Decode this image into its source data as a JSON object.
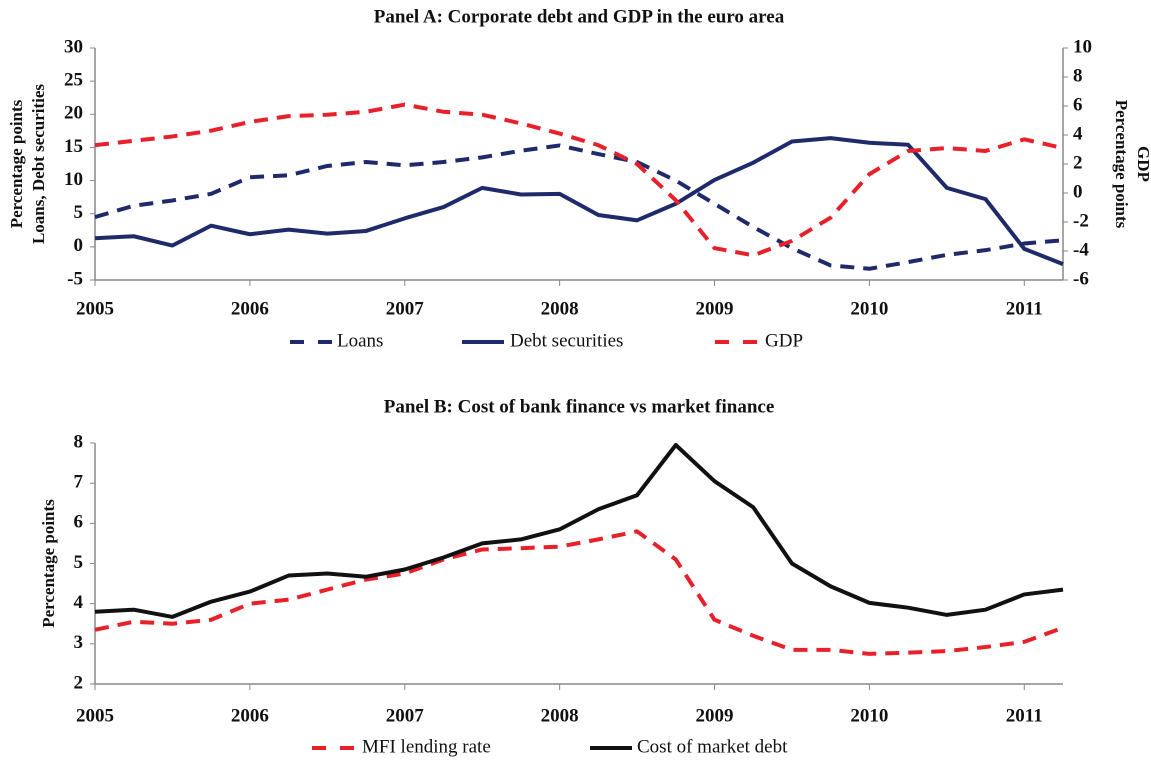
{
  "chart_data": [
    {
      "type": "line",
      "title": "Panel A: Corporate debt and GDP in the euro area",
      "ylabel": [
        "Percentage points",
        "Loans, Debt securities"
      ],
      "y2label": [
        "Percentage points",
        "GDP"
      ],
      "x": [
        2005,
        2005.25,
        2005.5,
        2005.75,
        2006,
        2006.25,
        2006.5,
        2006.75,
        2007,
        2007.25,
        2007.5,
        2007.75,
        2008,
        2008.25,
        2008.5,
        2008.75,
        2009,
        2009.25,
        2009.5,
        2009.75,
        2010,
        2010.25,
        2010.5,
        2010.75,
        2011,
        2011.25
      ],
      "xlim": [
        2005,
        2011.25
      ],
      "xticks": [
        2005,
        2006,
        2007,
        2008,
        2009,
        2010,
        2011
      ],
      "ylim": [
        -5,
        30
      ],
      "yticks": [
        -5,
        0,
        5,
        10,
        15,
        20,
        25,
        30
      ],
      "y2lim": [
        -6,
        10
      ],
      "y2ticks": [
        -6,
        -4,
        -2,
        0,
        2,
        4,
        6,
        8,
        10
      ],
      "series": [
        {
          "name": "Loans",
          "color": "#1f2a6b",
          "style": "dashed",
          "values": [
            4.5,
            6.2,
            7,
            8,
            10.5,
            10.8,
            12.2,
            12.8,
            12.3,
            12.8,
            13.5,
            14.5,
            15.3,
            14,
            12.8,
            10,
            6.5,
            3,
            -0.2,
            -2.8,
            -3.3,
            -2.3,
            -1.2,
            -0.5,
            0.5,
            1
          ]
        },
        {
          "name": "Debt securities",
          "color": "#1f2a6b",
          "style": "solid",
          "values": [
            1.3,
            1.6,
            0.2,
            3.2,
            1.9,
            2.6,
            2.0,
            2.4,
            4.3,
            6.0,
            8.9,
            7.9,
            8.0,
            4.8,
            4.0,
            6.5,
            10.1,
            12.7,
            15.9,
            16.4,
            15.7,
            15.4,
            8.9,
            7.2,
            -0.3,
            -2.6
          ]
        },
        {
          "name": "GDP",
          "color": "#e8202a",
          "style": "dashed",
          "axis": "y2",
          "values": [
            3.3,
            3.6,
            3.9,
            4.3,
            4.9,
            5.3,
            5.4,
            5.6,
            6.1,
            5.6,
            5.4,
            4.8,
            4.1,
            3.3,
            2.0,
            -0.5,
            -3.8,
            -4.3,
            -3.3,
            -1.7,
            1.3,
            2.9,
            3.1,
            2.9,
            3.7,
            3.1
          ]
        }
      ]
    },
    {
      "type": "line",
      "title": "Panel B: Cost of bank finance vs market finance",
      "ylabel": [
        "Percentage points"
      ],
      "x": [
        2005,
        2005.25,
        2005.5,
        2005.75,
        2006,
        2006.25,
        2006.5,
        2006.75,
        2007,
        2007.25,
        2007.5,
        2007.75,
        2008,
        2008.25,
        2008.5,
        2008.75,
        2009,
        2009.25,
        2009.5,
        2009.75,
        2010,
        2010.25,
        2010.5,
        2010.75,
        2011,
        2011.25
      ],
      "xlim": [
        2005,
        2011.25
      ],
      "xticks": [
        2005,
        2006,
        2007,
        2008,
        2009,
        2010,
        2011
      ],
      "ylim": [
        2,
        8
      ],
      "yticks": [
        2,
        3,
        4,
        5,
        6,
        7,
        8
      ],
      "series": [
        {
          "name": "MFI lending rate",
          "color": "#e8202a",
          "style": "dashed",
          "values": [
            3.35,
            3.55,
            3.5,
            3.6,
            4.0,
            4.1,
            4.35,
            4.6,
            4.75,
            5.1,
            5.35,
            5.38,
            5.42,
            5.6,
            5.8,
            5.1,
            3.6,
            3.2,
            2.85,
            2.85,
            2.75,
            2.78,
            2.82,
            2.92,
            3.05,
            3.4
          ]
        },
        {
          "name": "Cost of market debt",
          "color": "#111111",
          "style": "solid",
          "values": [
            3.8,
            3.85,
            3.67,
            4.05,
            4.3,
            4.7,
            4.75,
            4.67,
            4.85,
            5.15,
            5.5,
            5.6,
            5.85,
            6.35,
            6.7,
            7.95,
            7.05,
            6.4,
            5.0,
            4.43,
            4.02,
            3.9,
            3.72,
            3.85,
            4.23,
            4.35
          ]
        }
      ]
    }
  ]
}
